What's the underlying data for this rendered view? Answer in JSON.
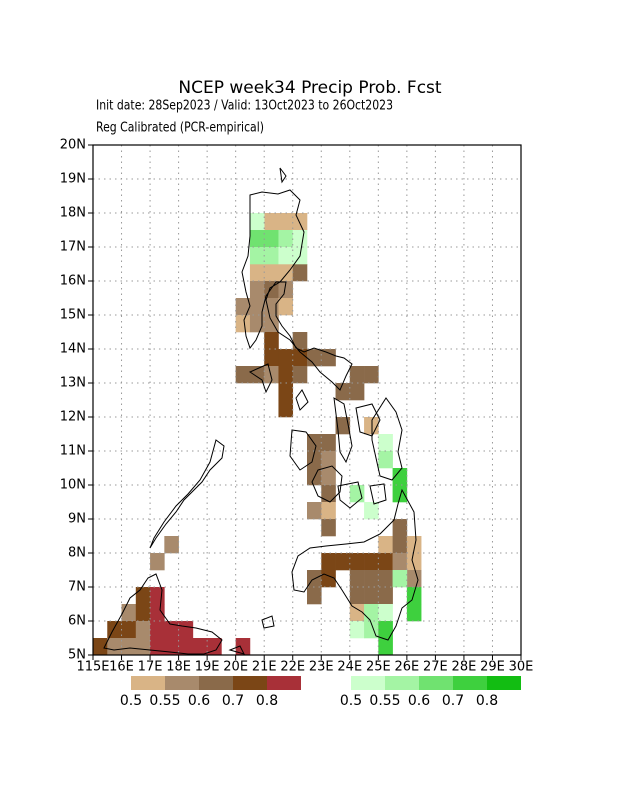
{
  "title": "NCEP week34 Precip Prob. Fcst",
  "subtitle": "Init date: 28Sep2023 / Valid: 13Oct2023 to 26Oct2023",
  "subtitle2": "Reg Calibrated (PCR-empirical)",
  "map": {
    "xlim": [
      115,
      130
    ],
    "ylim": [
      5,
      20
    ],
    "grid": true,
    "xticks": [
      {
        "value": 115,
        "label": "115E"
      },
      {
        "value": 116,
        "label": "16E"
      },
      {
        "value": 117,
        "label": "17E"
      },
      {
        "value": 118,
        "label": "18E"
      },
      {
        "value": 119,
        "label": "19E"
      },
      {
        "value": 120,
        "label": "20E"
      },
      {
        "value": 121,
        "label": "21E"
      },
      {
        "value": 122,
        "label": "22E"
      },
      {
        "value": 123,
        "label": "23E"
      },
      {
        "value": 124,
        "label": "24E"
      },
      {
        "value": 125,
        "label": "25E"
      },
      {
        "value": 126,
        "label": "26E"
      },
      {
        "value": 127,
        "label": "27E"
      },
      {
        "value": 128,
        "label": "28E"
      },
      {
        "value": 129,
        "label": "29E"
      },
      {
        "value": 130,
        "label": "30E"
      }
    ],
    "yticks": [
      {
        "value": 5,
        "label": "5N"
      },
      {
        "value": 6,
        "label": "6N"
      },
      {
        "value": 7,
        "label": "7N"
      },
      {
        "value": 8,
        "label": "8N"
      },
      {
        "value": 9,
        "label": "9N"
      },
      {
        "value": 10,
        "label": "10N"
      },
      {
        "value": 11,
        "label": "11N"
      },
      {
        "value": 12,
        "label": "12N"
      },
      {
        "value": 13,
        "label": "13N"
      },
      {
        "value": 14,
        "label": "14N"
      },
      {
        "value": 15,
        "label": "15N"
      },
      {
        "value": 16,
        "label": "16N"
      },
      {
        "value": 17,
        "label": "17N"
      },
      {
        "value": 18,
        "label": "18N"
      },
      {
        "value": 19,
        "label": "19N"
      },
      {
        "value": 20,
        "label": "20N"
      }
    ],
    "dry_cells": [
      [
        121,
        17.5,
        0.5
      ],
      [
        121.5,
        17.5,
        0.5
      ],
      [
        122,
        17.5,
        0.5
      ],
      [
        120.5,
        16,
        0.5
      ],
      [
        121,
        16,
        0.5
      ],
      [
        121.5,
        16,
        0.5
      ],
      [
        122,
        16,
        0.6
      ],
      [
        120.5,
        15.5,
        0.55
      ],
      [
        121,
        15.5,
        0.6
      ],
      [
        121.5,
        15.5,
        0.55
      ],
      [
        120,
        15,
        0.55
      ],
      [
        120.5,
        15,
        0.55
      ],
      [
        121,
        15,
        0.55
      ],
      [
        121.5,
        15,
        0.5
      ],
      [
        120,
        14.5,
        0.5
      ],
      [
        120.5,
        14.5,
        0.55
      ],
      [
        121,
        14.5,
        0.55
      ],
      [
        121,
        14,
        0.7
      ],
      [
        122,
        14,
        0.6
      ],
      [
        121,
        13.5,
        0.7
      ],
      [
        121.5,
        13.5,
        0.7
      ],
      [
        122,
        13.5,
        0.7
      ],
      [
        122.5,
        13.5,
        0.6
      ],
      [
        123,
        13.5,
        0.6
      ],
      [
        120,
        13,
        0.6
      ],
      [
        120.5,
        13,
        0.6
      ],
      [
        121,
        13,
        0.55
      ],
      [
        121.5,
        13,
        0.7
      ],
      [
        122,
        13,
        0.6
      ],
      [
        124,
        13,
        0.6
      ],
      [
        124.5,
        13,
        0.6
      ],
      [
        121.5,
        12.5,
        0.7
      ],
      [
        123.5,
        12.5,
        0.6
      ],
      [
        124,
        12.5,
        0.6
      ],
      [
        121.5,
        12,
        0.7
      ],
      [
        123.5,
        11.5,
        0.6
      ],
      [
        124.5,
        11.5,
        0.5
      ],
      [
        122.5,
        11,
        0.6
      ],
      [
        123,
        11,
        0.6
      ],
      [
        122.5,
        10.5,
        0.6
      ],
      [
        123,
        10.5,
        0.55
      ],
      [
        122.5,
        10,
        0.6
      ],
      [
        123,
        10,
        0.55
      ],
      [
        123,
        9.5,
        0.6
      ],
      [
        122.5,
        9,
        0.55
      ],
      [
        123,
        9,
        0.5
      ],
      [
        123,
        8.5,
        0.6
      ],
      [
        125.5,
        8.5,
        0.6
      ],
      [
        117.5,
        8,
        0.55
      ],
      [
        125,
        8,
        0.5
      ],
      [
        125.5,
        8,
        0.6
      ],
      [
        126,
        8,
        0.5
      ],
      [
        117,
        7.5,
        0.55
      ],
      [
        123,
        7.5,
        0.7
      ],
      [
        123.5,
        7.5,
        0.7
      ],
      [
        124,
        7.5,
        0.7
      ],
      [
        124.5,
        7.5,
        0.7
      ],
      [
        125,
        7.5,
        0.7
      ],
      [
        125.5,
        7.5,
        0.55
      ],
      [
        126,
        7.5,
        0.5
      ],
      [
        122.5,
        7,
        0.6
      ],
      [
        123,
        7,
        0.7
      ],
      [
        124,
        7,
        0.6
      ],
      [
        124.5,
        7,
        0.6
      ],
      [
        125,
        7,
        0.6
      ],
      [
        126,
        7,
        0.55
      ],
      [
        116.5,
        6.5,
        0.7
      ],
      [
        117,
        6.5,
        0.8
      ],
      [
        122.5,
        6.5,
        0.6
      ],
      [
        124,
        6.5,
        0.6
      ],
      [
        124.5,
        6.5,
        0.6
      ],
      [
        125,
        6.5,
        0.6
      ],
      [
        116,
        6,
        0.55
      ],
      [
        116.5,
        6,
        0.7
      ],
      [
        117,
        6,
        0.8
      ],
      [
        124,
        6,
        0.5
      ],
      [
        115.5,
        5.5,
        0.7
      ],
      [
        116,
        5.5,
        0.7
      ],
      [
        116.5,
        5.5,
        0.55
      ],
      [
        117,
        5.5,
        0.8
      ],
      [
        117.5,
        5.5,
        0.8
      ],
      [
        118,
        5.5,
        0.8
      ],
      [
        115,
        5,
        0.7
      ],
      [
        115.5,
        5,
        0.55
      ],
      [
        116,
        5,
        0.55
      ],
      [
        116.5,
        5,
        0.55
      ],
      [
        117,
        5,
        0.8
      ],
      [
        117.5,
        5,
        0.8
      ],
      [
        118,
        5,
        0.8
      ],
      [
        118.5,
        5,
        0.8
      ],
      [
        119,
        5,
        0.8
      ],
      [
        120,
        5,
        0.8
      ]
    ],
    "wet_cells": [
      [
        120.5,
        17.5,
        0.5
      ],
      [
        120.5,
        17,
        0.6
      ],
      [
        121,
        17,
        0.6
      ],
      [
        121.5,
        17,
        0.55
      ],
      [
        122,
        17,
        0.5
      ],
      [
        120.5,
        16.5,
        0.55
      ],
      [
        121,
        16.5,
        0.55
      ],
      [
        121.5,
        16.5,
        0.5
      ],
      [
        122,
        16.5,
        0.5
      ],
      [
        125,
        11,
        0.5
      ],
      [
        125,
        10.5,
        0.55
      ],
      [
        125.5,
        10,
        0.7
      ],
      [
        124,
        9.5,
        0.55
      ],
      [
        125.5,
        9.5,
        0.7
      ],
      [
        124.5,
        9,
        0.5
      ],
      [
        125.5,
        7,
        0.55
      ],
      [
        126,
        6.5,
        0.7
      ],
      [
        124.5,
        6,
        0.55
      ],
      [
        125,
        6,
        0.5
      ],
      [
        126,
        6,
        0.7
      ],
      [
        124,
        5.5,
        0.5
      ],
      [
        124.5,
        5.5,
        0.55
      ],
      [
        125,
        5.5,
        0.7
      ],
      [
        125,
        5,
        0.7
      ]
    ]
  },
  "dry_legend": {
    "levels": [
      0.5,
      0.55,
      0.6,
      0.7,
      0.8
    ],
    "colors": [
      "#d9b486",
      "#a88a6c",
      "#8a6a4a",
      "#7b4616",
      "#a83038"
    ]
  },
  "wet_legend": {
    "levels": [
      0.5,
      0.55,
      0.6,
      0.7,
      0.8
    ],
    "colors": [
      "#ccffcc",
      "#a4f4a4",
      "#70e270",
      "#3ed03e",
      "#12bd12"
    ]
  }
}
